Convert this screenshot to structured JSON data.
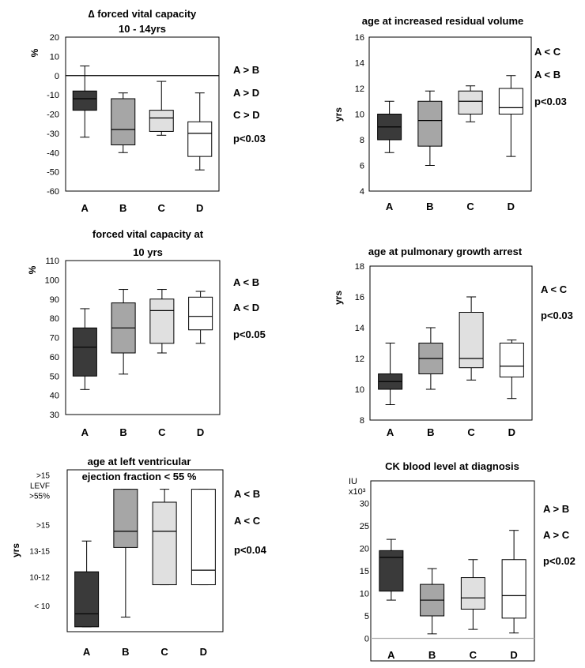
{
  "chart_data": [
    {
      "type": "box",
      "title": [
        "∆ forced vital capacity",
        "10 - 14yrs"
      ],
      "ylabel": "%",
      "ylim": [
        -60,
        20
      ],
      "yticks": [
        "20",
        "10",
        "0",
        "-10",
        "-20",
        "-30",
        "-40",
        "-50",
        "-60"
      ],
      "zero_line": true,
      "categories": [
        "A",
        "B",
        "C",
        "D"
      ],
      "boxes": [
        {
          "min": -32,
          "q1": -18,
          "median": -12,
          "q3": -8,
          "max": 5
        },
        {
          "min": -40,
          "q1": -36,
          "median": -28,
          "q3": -12,
          "max": -9
        },
        {
          "min": -31,
          "q1": -29,
          "median": -22,
          "q3": -18,
          "max": -3
        },
        {
          "min": -49,
          "q1": -42,
          "median": -30,
          "q3": -24,
          "max": -9
        }
      ],
      "annotations": [
        "A > B",
        "A > D",
        "C > D",
        "p<0.03"
      ]
    },
    {
      "type": "box",
      "title": [
        "age at increased residual volume"
      ],
      "ylabel": "yrs",
      "ylim": [
        4,
        16
      ],
      "yticks": [
        "16",
        "14",
        "12",
        "10",
        "8",
        "6",
        "4"
      ],
      "categories": [
        "A",
        "B",
        "C",
        "D"
      ],
      "boxes": [
        {
          "min": 7,
          "q1": 8,
          "median": 9,
          "q3": 10,
          "max": 11
        },
        {
          "min": 6,
          "q1": 7.5,
          "median": 9.5,
          "q3": 11,
          "max": 11.8
        },
        {
          "min": 9.4,
          "q1": 10,
          "median": 11,
          "q3": 11.8,
          "max": 12.2
        },
        {
          "min": 6.7,
          "q1": 10,
          "median": 10.5,
          "q3": 12,
          "max": 13
        }
      ],
      "annotations": [
        "A < C",
        "A < B",
        "p<0.03"
      ]
    },
    {
      "type": "box",
      "title": [
        "forced  vital capacity at",
        "10 yrs"
      ],
      "ylabel": "%",
      "ylim": [
        30,
        110
      ],
      "yticks": [
        "110",
        "100",
        "90",
        "80",
        "70",
        "60",
        "50",
        "40",
        "30"
      ],
      "categories": [
        "A",
        "B",
        "C",
        "D"
      ],
      "boxes": [
        {
          "min": 43,
          "q1": 50,
          "median": 65,
          "q3": 75,
          "max": 85
        },
        {
          "min": 51,
          "q1": 62,
          "median": 75,
          "q3": 88,
          "max": 95
        },
        {
          "min": 62,
          "q1": 67,
          "median": 84,
          "q3": 90,
          "max": 95
        },
        {
          "min": 67,
          "q1": 74,
          "median": 81,
          "q3": 91,
          "max": 94
        }
      ],
      "annotations": [
        "A < B",
        "A < D",
        "p<0.05"
      ]
    },
    {
      "type": "box",
      "title": [
        "age at pulmonary growth arrest"
      ],
      "ylabel": "yrs",
      "ylim": [
        8,
        18
      ],
      "yticks": [
        "18",
        "16",
        "14",
        "12",
        "10",
        "8"
      ],
      "categories": [
        "A",
        "B",
        "C",
        "D"
      ],
      "boxes": [
        {
          "min": 9,
          "q1": 10,
          "median": 10.5,
          "q3": 11,
          "max": 13
        },
        {
          "min": 10,
          "q1": 11,
          "median": 12,
          "q3": 13,
          "max": 14
        },
        {
          "min": 10.6,
          "q1": 11.4,
          "median": 12,
          "q3": 15,
          "max": 16
        },
        {
          "min": 9.4,
          "q1": 10.8,
          "median": 11.5,
          "q3": 13,
          "max": 13.2
        }
      ],
      "annotations": [
        "A < C",
        "p<0.03"
      ]
    },
    {
      "type": "box",
      "title": [
        "age at left ventricular",
        "ejection fraction < 55 %"
      ],
      "ylabel": "yrs",
      "ylim": [
        0,
        5
      ],
      "ytick_values": [
        4.4,
        3.3,
        2.5,
        1.7,
        0.8
      ],
      "yticks": [
        ">15 LEVF >55%",
        ">15",
        "13-15",
        "10-12",
        "< 10"
      ],
      "categories": [
        "A",
        "B",
        "C",
        "D"
      ],
      "boxes": [
        {
          "min": 0.15,
          "q1": 0.15,
          "median": 0.55,
          "q3": 1.85,
          "max": 2.8
        },
        {
          "min": 0.45,
          "q1": 2.6,
          "median": 3.1,
          "q3": 4.4,
          "max": 4.4
        },
        {
          "min": 1.45,
          "q1": 1.45,
          "median": 3.1,
          "q3": 4.0,
          "max": 4.4
        },
        {
          "min": 1.45,
          "q1": 1.45,
          "median": 1.9,
          "q3": 4.4,
          "max": 4.4
        }
      ],
      "annotations": [
        "A < B",
        "A < C",
        "p<0.04"
      ]
    },
    {
      "type": "box",
      "title": [
        "CK blood level at diagnosis"
      ],
      "ylabel": "IU x10³",
      "ylim": [
        -5,
        35
      ],
      "yticks": [
        "30",
        "25",
        "20",
        "15",
        "10",
        "5",
        "0"
      ],
      "zero_line": true,
      "categories": [
        "A",
        "B",
        "C",
        "D"
      ],
      "boxes": [
        {
          "min": 8.5,
          "q1": 10.5,
          "median": 18,
          "q3": 19.5,
          "max": 22
        },
        {
          "min": 1,
          "q1": 5,
          "median": 8.5,
          "q3": 12,
          "max": 15.5
        },
        {
          "min": 2,
          "q1": 6.5,
          "median": 9,
          "q3": 13.5,
          "max": 17.5
        },
        {
          "min": 1.2,
          "q1": 4.5,
          "median": 9.5,
          "q3": 17.5,
          "max": 24
        }
      ],
      "annotations": [
        "A > B",
        "A > C",
        "p<0.02"
      ]
    }
  ],
  "colors": {
    "A": "#3a3a3a",
    "B": "#a6a6a6",
    "C": "#e0e0e0",
    "D": "#ffffff",
    "zero_line_1": "#000000",
    "zero_line_6": "#b0b0b0"
  }
}
